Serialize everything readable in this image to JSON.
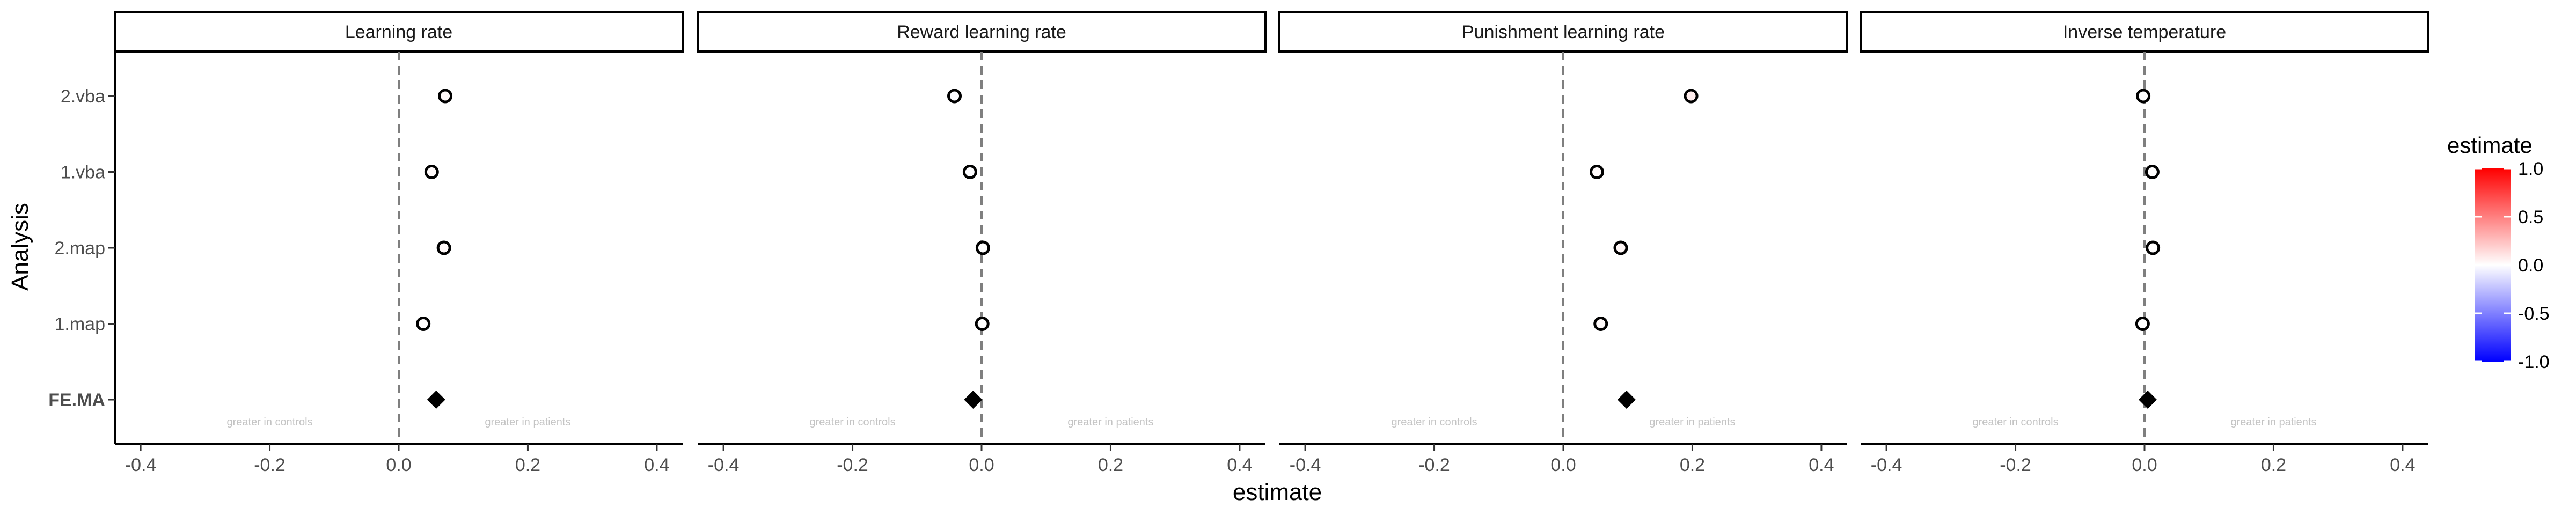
{
  "chart_data": {
    "type": "scatter",
    "xlabel": "estimate",
    "ylabel": "Analysis",
    "xlim": [
      -0.44,
      0.44
    ],
    "xticks": [
      -0.4,
      -0.2,
      0.0,
      0.2,
      0.4
    ],
    "xtick_labels": [
      "-0.4",
      "-0.2",
      "0.0",
      "0.2",
      "0.4"
    ],
    "categories": [
      "2.vba",
      "1.vba",
      "2.map",
      "1.map",
      "FE.MA"
    ],
    "bold_categories": [
      "FE.MA"
    ],
    "reference_line": 0,
    "annotations": {
      "left": "greater in controls",
      "right": "greater in patients"
    },
    "panels": [
      {
        "title": "Learning rate",
        "points": [
          {
            "category": "2.vba",
            "value": 0.072,
            "shape": "circle"
          },
          {
            "category": "1.vba",
            "value": 0.051,
            "shape": "circle"
          },
          {
            "category": "2.map",
            "value": 0.07,
            "shape": "circle"
          },
          {
            "category": "1.map",
            "value": 0.038,
            "shape": "circle"
          },
          {
            "category": "FE.MA",
            "value": 0.058,
            "shape": "diamond"
          }
        ]
      },
      {
        "title": "Reward learning rate",
        "points": [
          {
            "category": "2.vba",
            "value": -0.042,
            "shape": "circle"
          },
          {
            "category": "1.vba",
            "value": -0.018,
            "shape": "circle"
          },
          {
            "category": "2.map",
            "value": 0.002,
            "shape": "circle"
          },
          {
            "category": "1.map",
            "value": 0.001,
            "shape": "circle"
          },
          {
            "category": "FE.MA",
            "value": -0.013,
            "shape": "diamond"
          }
        ]
      },
      {
        "title": "Punishment learning rate",
        "points": [
          {
            "category": "2.vba",
            "value": 0.198,
            "shape": "circle"
          },
          {
            "category": "1.vba",
            "value": 0.052,
            "shape": "circle"
          },
          {
            "category": "2.map",
            "value": 0.089,
            "shape": "circle"
          },
          {
            "category": "1.map",
            "value": 0.058,
            "shape": "circle"
          },
          {
            "category": "FE.MA",
            "value": 0.098,
            "shape": "diamond"
          }
        ]
      },
      {
        "title": "Inverse temperature",
        "points": [
          {
            "category": "2.vba",
            "value": -0.002,
            "shape": "circle"
          },
          {
            "category": "1.vba",
            "value": 0.012,
            "shape": "circle"
          },
          {
            "category": "2.map",
            "value": 0.013,
            "shape": "circle"
          },
          {
            "category": "1.map",
            "value": -0.003,
            "shape": "circle"
          },
          {
            "category": "FE.MA",
            "value": 0.005,
            "shape": "diamond"
          }
        ]
      }
    ],
    "legend": {
      "title": "estimate",
      "position": "right",
      "range": [
        -1.0,
        1.0
      ],
      "ticks": [
        "1.0",
        "0.5",
        "0.0",
        "-0.5",
        "-1.0"
      ],
      "tick_values": [
        1.0,
        0.5,
        0.0,
        -0.5,
        -1.0
      ],
      "colors": {
        "low": "#0000ff",
        "mid": "#ffffff",
        "high": "#ff0000"
      }
    },
    "grid": false
  }
}
